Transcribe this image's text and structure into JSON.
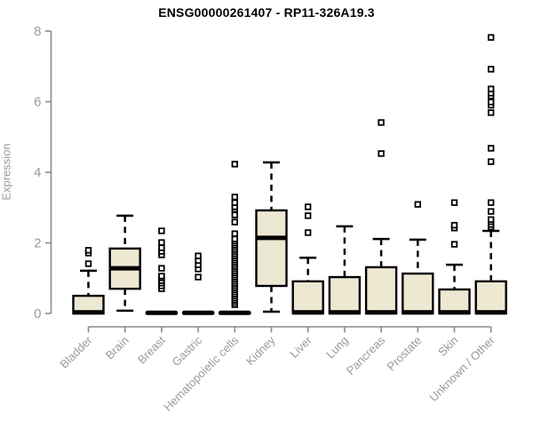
{
  "chart_data": {
    "type": "boxplot",
    "title": "ENSG00000261407 - RP11-326A19.3",
    "xlabel": "",
    "ylabel": "Expression",
    "ylim": [
      0,
      8
    ],
    "yticks": [
      0,
      2,
      4,
      6,
      8
    ],
    "grid": false,
    "legend": "none",
    "categories": [
      "Bladder",
      "Brain",
      "Breast",
      "Gastric",
      "Hematopoietic cells",
      "Kidney",
      "Liver",
      "Lung",
      "Pancreas",
      "Prostate",
      "Skin",
      "Unknown / Other"
    ],
    "boxes": [
      {
        "category": "Bladder",
        "whisker_low": 0,
        "q1": 0,
        "median": 0.03,
        "q3": 0.5,
        "whisker_high": 1.21,
        "outliers": [
          1.41,
          1.71,
          1.79
        ]
      },
      {
        "category": "Brain",
        "whisker_low": 0.08,
        "q1": 0.7,
        "median": 1.28,
        "q3": 1.84,
        "whisker_high": 2.77,
        "outliers": []
      },
      {
        "category": "Breast",
        "whisker_low": 0,
        "q1": 0,
        "median": 0.02,
        "q3": 0.03,
        "whisker_high": 0.03,
        "outliers": [
          0.7,
          0.78,
          0.86,
          0.93,
          1.01,
          1.06,
          1.28,
          1.66,
          1.76,
          1.86,
          2.01,
          2.34
        ]
      },
      {
        "category": "Gastric",
        "whisker_low": 0,
        "q1": 0,
        "median": 0.02,
        "q3": 0.03,
        "whisker_high": 0.03,
        "outliers": [
          1.03,
          1.26,
          1.38,
          1.5,
          1.63
        ]
      },
      {
        "category": "Hematopoietic cells",
        "whisker_low": 0,
        "q1": 0,
        "median": 0.02,
        "q3": 0.03,
        "whisker_high": 0.03,
        "outliers": [
          0.25,
          0.31,
          0.37,
          0.43,
          0.49,
          0.55,
          0.61,
          0.67,
          0.73,
          0.79,
          0.85,
          0.91,
          0.97,
          1.03,
          1.09,
          1.15,
          1.21,
          1.27,
          1.33,
          1.39,
          1.45,
          1.51,
          1.57,
          1.63,
          1.69,
          1.75,
          1.81,
          1.87,
          1.93,
          1.99,
          2.05,
          2.11,
          2.26,
          2.59,
          2.79,
          2.95,
          3.02,
          3.14,
          3.3,
          4.23
        ]
      },
      {
        "category": "Kidney",
        "whisker_low": 0.05,
        "q1": 0.78,
        "median": 2.14,
        "q3": 2.92,
        "whisker_high": 4.28,
        "outliers": []
      },
      {
        "category": "Liver",
        "whisker_low": 0,
        "q1": 0,
        "median": 0.03,
        "q3": 0.91,
        "whisker_high": 1.58,
        "outliers": [
          2.29,
          2.77,
          3.02
        ]
      },
      {
        "category": "Lung",
        "whisker_low": 0,
        "q1": 0,
        "median": 0.03,
        "q3": 1.03,
        "whisker_high": 2.47,
        "outliers": []
      },
      {
        "category": "Pancreas",
        "whisker_low": 0,
        "q1": 0,
        "median": 0.03,
        "q3": 1.31,
        "whisker_high": 2.11,
        "outliers": [
          4.53,
          5.41
        ]
      },
      {
        "category": "Prostate",
        "whisker_low": 0,
        "q1": 0,
        "median": 0.03,
        "q3": 1.13,
        "whisker_high": 2.09,
        "outliers": [
          3.09
        ]
      },
      {
        "category": "Skin",
        "whisker_low": 0,
        "q1": 0,
        "median": 0.03,
        "q3": 0.68,
        "whisker_high": 1.38,
        "outliers": [
          1.96,
          2.42,
          2.5,
          3.14
        ]
      },
      {
        "category": "Unknown / Other",
        "whisker_low": 0,
        "q1": 0,
        "median": 0.03,
        "q3": 0.91,
        "whisker_high": 2.34,
        "outliers": [
          2.45,
          2.52,
          2.6,
          2.66,
          2.89,
          3.14,
          4.3,
          4.68,
          5.69,
          5.9,
          5.99,
          6.16,
          6.24,
          6.36,
          6.92,
          7.82
        ]
      }
    ],
    "style": {
      "box_fill": "#ede8d2",
      "box_stroke": "#000000",
      "median_color": "#000000",
      "axis_color": "#8a8a8a",
      "tick_label_color": "#9a9a9a",
      "title_color": "#000000",
      "outlier_fill": "#ffffff"
    }
  }
}
